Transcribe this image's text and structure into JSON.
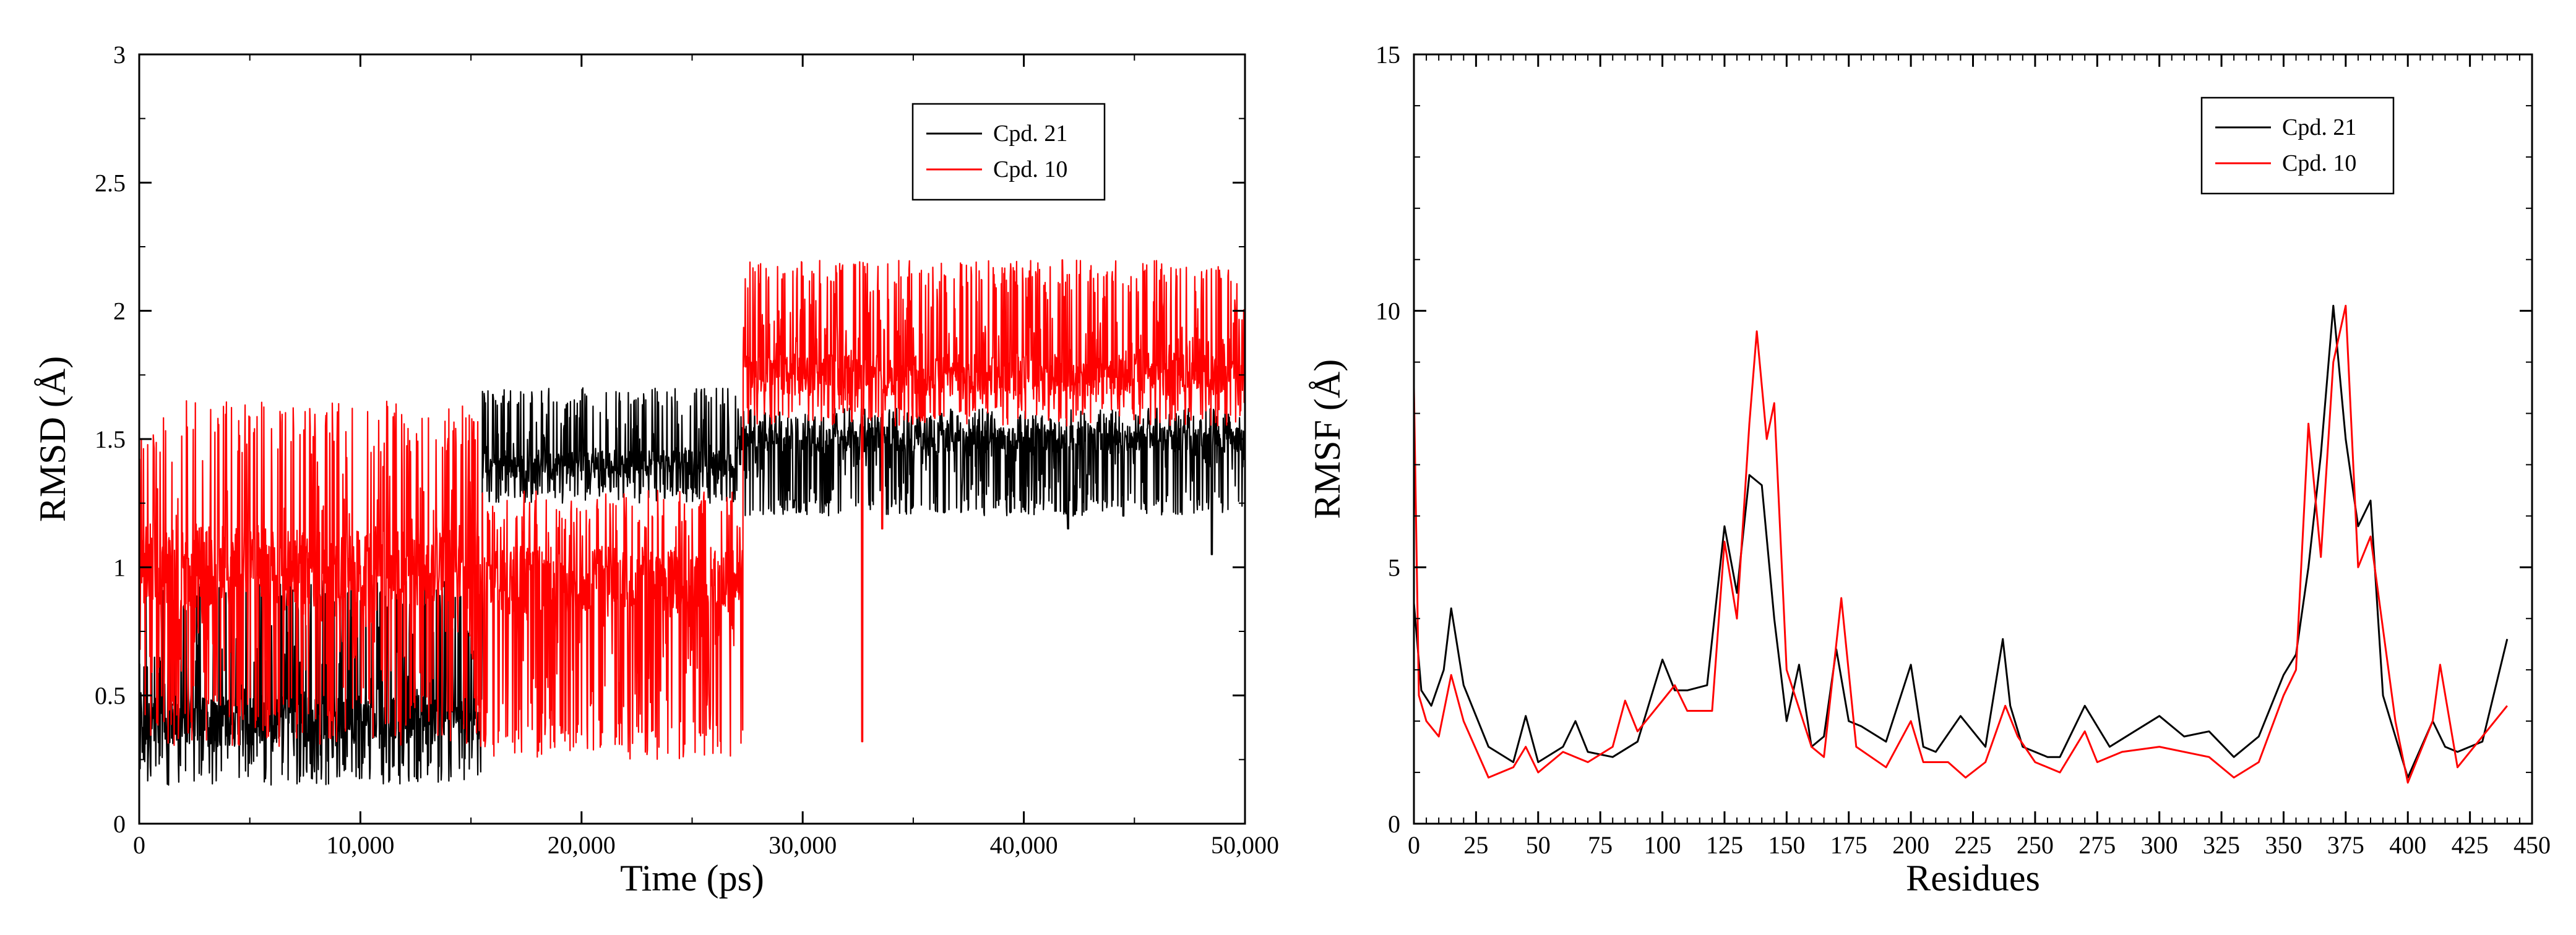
{
  "chart_data": [
    {
      "type": "line",
      "xlabel": "Time (ps)",
      "ylabel": "RMSD (Å)",
      "xlim": [
        0,
        50000
      ],
      "ylim": [
        0,
        3
      ],
      "xticks": [
        0,
        10000,
        20000,
        30000,
        40000,
        50000
      ],
      "xtick_labels": [
        "0",
        "10,000",
        "20,000",
        "30,000",
        "40,000",
        "50,000"
      ],
      "yticks": [
        0,
        0.5,
        1,
        1.5,
        2,
        2.5,
        3
      ],
      "ytick_labels": [
        "0",
        "0.5",
        "1",
        "1.5",
        "2",
        "2.5",
        "3"
      ],
      "legend": {
        "position": "top-right",
        "entries": [
          "Cpd. 21",
          "Cpd. 10"
        ]
      },
      "series": [
        {
          "name": "Cpd. 21",
          "color": "#000000",
          "segments": [
            {
              "x": [
                0,
                15500
              ],
              "mean": 0.4,
              "low": 0.15,
              "high": 0.95
            },
            {
              "x": [
                15500,
                27000
              ],
              "mean": 1.4,
              "low": 1.25,
              "high": 1.7
            },
            {
              "x": [
                27000,
                50000
              ],
              "mean": 1.5,
              "low": 1.2,
              "high": 1.62
            }
          ],
          "events": [
            {
              "x": 42000,
              "value": 1.15
            },
            {
              "x": 44500,
              "value": 1.2
            },
            {
              "x": 48500,
              "value": 1.05
            }
          ]
        },
        {
          "name": "Cpd. 10",
          "color": "#ff0000",
          "segments": [
            {
              "x": [
                0,
                15500
              ],
              "mean": 1.0,
              "low": 0.3,
              "high": 1.65
            },
            {
              "x": [
                15500,
                27300
              ],
              "mean": 0.95,
              "low": 0.25,
              "high": 1.3
            },
            {
              "x": [
                27300,
                50000
              ],
              "mean": 1.75,
              "low": 1.55,
              "high": 2.2
            }
          ],
          "events": [
            {
              "x": 32700,
              "value": 0.32
            },
            {
              "x": 33600,
              "value": 1.15
            }
          ]
        }
      ]
    },
    {
      "type": "line",
      "xlabel": "Residues",
      "ylabel": "RMSF (Å)",
      "xlim": [
        0,
        450
      ],
      "ylim": [
        0,
        15
      ],
      "xticks": [
        0,
        25,
        50,
        75,
        100,
        125,
        150,
        175,
        200,
        225,
        250,
        275,
        300,
        325,
        350,
        375,
        400,
        425,
        450
      ],
      "xtick_labels": [
        "0",
        "25",
        "50",
        "75",
        "100",
        "125",
        "150",
        "175",
        "200",
        "225",
        "250",
        "275",
        "300",
        "325",
        "350",
        "375",
        "400",
        "425",
        "450"
      ],
      "yticks": [
        0,
        5,
        10,
        15
      ],
      "ytick_labels": [
        "0",
        "5",
        "10",
        "15"
      ],
      "legend": {
        "position": "top-right",
        "entries": [
          "Cpd. 21",
          "Cpd. 10"
        ]
      },
      "series": [
        {
          "name": "Cpd. 21",
          "color": "#000000",
          "x": [
            0,
            3,
            7,
            12,
            15,
            20,
            30,
            40,
            45,
            50,
            60,
            65,
            70,
            80,
            90,
            100,
            105,
            110,
            118,
            125,
            130,
            135,
            140,
            145,
            150,
            155,
            160,
            165,
            170,
            175,
            180,
            190,
            200,
            205,
            210,
            220,
            230,
            237,
            240,
            245,
            255,
            260,
            270,
            280,
            290,
            300,
            310,
            320,
            330,
            340,
            350,
            355,
            360,
            365,
            370,
            375,
            380,
            385,
            390,
            400,
            410,
            415,
            420,
            430,
            440
          ],
          "values": [
            4.3,
            2.6,
            2.3,
            3.0,
            4.2,
            2.7,
            1.5,
            1.2,
            2.1,
            1.2,
            1.5,
            2.0,
            1.4,
            1.3,
            1.6,
            3.2,
            2.6,
            2.6,
            2.7,
            5.8,
            4.5,
            6.8,
            6.6,
            4.0,
            2.0,
            3.1,
            1.5,
            1.7,
            3.4,
            2.0,
            1.9,
            1.6,
            3.1,
            1.5,
            1.4,
            2.1,
            1.5,
            3.6,
            2.3,
            1.5,
            1.3,
            1.3,
            2.3,
            1.5,
            1.8,
            2.1,
            1.7,
            1.8,
            1.3,
            1.7,
            2.9,
            3.3,
            5.0,
            7.2,
            10.1,
            7.5,
            5.8,
            6.3,
            2.5,
            0.9,
            2.0,
            1.5,
            1.4,
            1.6,
            3.6
          ]
        },
        {
          "name": "Cpd. 10",
          "color": "#ff0000",
          "x": [
            0,
            2,
            5,
            10,
            15,
            20,
            30,
            40,
            45,
            50,
            60,
            70,
            80,
            85,
            90,
            100,
            105,
            110,
            120,
            125,
            130,
            135,
            138,
            142,
            145,
            150,
            160,
            165,
            172,
            178,
            190,
            200,
            205,
            215,
            222,
            230,
            238,
            243,
            250,
            260,
            270,
            275,
            285,
            300,
            320,
            330,
            340,
            350,
            355,
            360,
            365,
            370,
            375,
            380,
            385,
            395,
            400,
            410,
            413,
            420,
            440
          ],
          "values": [
            8.5,
            2.5,
            2.0,
            1.7,
            2.9,
            2.0,
            0.9,
            1.1,
            1.5,
            1.0,
            1.4,
            1.2,
            1.5,
            2.4,
            1.8,
            2.4,
            2.7,
            2.2,
            2.2,
            5.5,
            4.0,
            7.8,
            9.6,
            7.5,
            8.2,
            3.0,
            1.5,
            1.3,
            4.4,
            1.5,
            1.1,
            2.0,
            1.2,
            1.2,
            0.9,
            1.2,
            2.3,
            1.7,
            1.2,
            1.0,
            1.8,
            1.2,
            1.4,
            1.5,
            1.3,
            0.9,
            1.2,
            2.5,
            3.0,
            7.8,
            5.2,
            9.0,
            10.1,
            5.0,
            5.6,
            2.0,
            0.8,
            2.0,
            3.1,
            1.1,
            2.3
          ]
        }
      ]
    }
  ]
}
